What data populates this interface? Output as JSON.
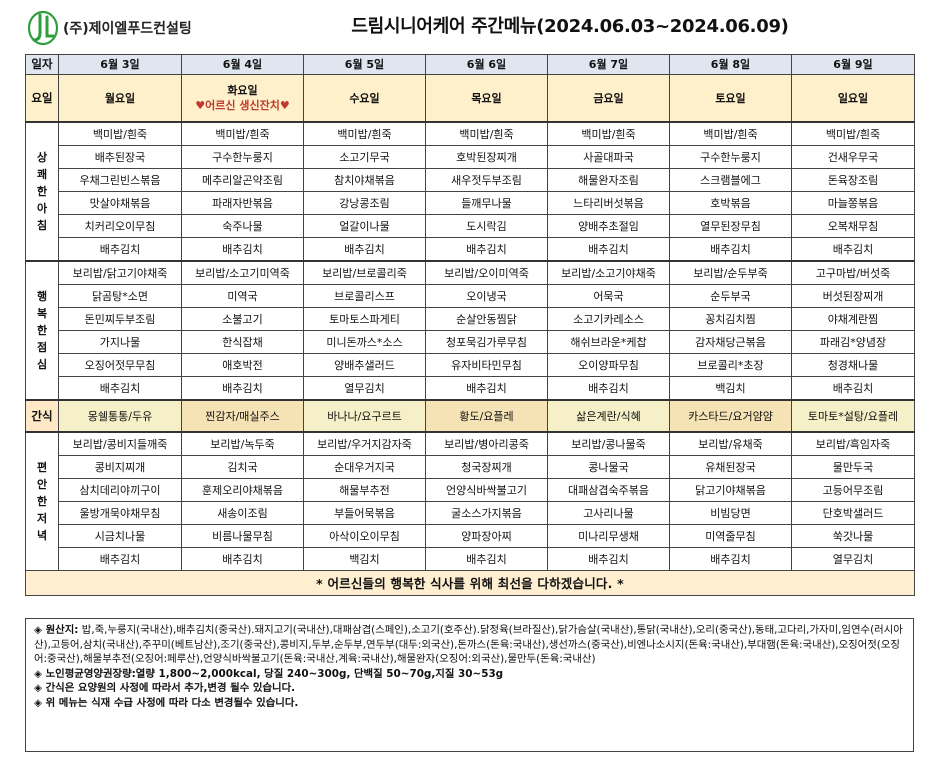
{
  "header": {
    "company": "(주)제이엘푸드컨설팅",
    "title": "드림시니어케어 주간메뉴(2024.06.03~2024.06.09)"
  },
  "labels": {
    "date": "일자",
    "day": "요일",
    "breakfast": "상쾌한아침",
    "lunch": "행복한점심",
    "snack": "간식",
    "dinner": "편안한저녁"
  },
  "dates": [
    "6월 3일",
    "6월 4일",
    "6월 5일",
    "6월 6일",
    "6월 7일",
    "6월 8일",
    "6월 9일"
  ],
  "days": [
    "월요일",
    "화요일",
    "수요일",
    "목요일",
    "금요일",
    "토요일",
    "일요일"
  ],
  "event": {
    "day_index": 1,
    "text": "♥어르신 생신잔치♥"
  },
  "breakfast": [
    [
      "백미밥/흰죽",
      "배추된장국",
      "우채그린빈스볶음",
      "맛살야채볶음",
      "치커리오이무침",
      "배추김치"
    ],
    [
      "백미밥/흰죽",
      "구수한누룽지",
      "메추리알곤약조림",
      "파래자반볶음",
      "숙주나물",
      "배추김치"
    ],
    [
      "백미밥/흰죽",
      "소고기무국",
      "참치야채볶음",
      "강낭콩조림",
      "얼갈이나물",
      "배추김치"
    ],
    [
      "백미밥/흰죽",
      "호박된장찌개",
      "새우젓두부조림",
      "들깨무나물",
      "도시락김",
      "배추김치"
    ],
    [
      "백미밥/흰죽",
      "사골대파국",
      "해물완자조림",
      "느타리버섯볶음",
      "양배추초절임",
      "배추김치"
    ],
    [
      "백미밥/흰죽",
      "구수한누룽지",
      "스크램블에그",
      "호박볶음",
      "열무된장무침",
      "배추김치"
    ],
    [
      "백미밥/흰죽",
      "건새우무국",
      "돈육장조림",
      "마늘쫑볶음",
      "오복채무침",
      "배추김치"
    ]
  ],
  "lunch": [
    [
      "보리밥/닭고기야채죽",
      "닭곰탕*소면",
      "돈민찌두부조림",
      "가지나물",
      "오징어젓무무침",
      "배추김치"
    ],
    [
      "보리밥/소고기미역죽",
      "미역국",
      "소불고기",
      "한식잡채",
      "애호박전",
      "배추김치"
    ],
    [
      "보리밥/브로콜리죽",
      "브로콜리스프",
      "토마토스파게티",
      "미니돈까스*소스",
      "양배추샐러드",
      "열무김치"
    ],
    [
      "보리밥/오이미역죽",
      "오이냉국",
      "순살안동찜닭",
      "청포묵김가루무침",
      "유자비타민무침",
      "배추김치"
    ],
    [
      "보리밥/소고기야채죽",
      "어묵국",
      "소고기카레소스",
      "해쉬브라운*케찹",
      "오이양파무침",
      "배추김치"
    ],
    [
      "보리밥/순두부죽",
      "순두부국",
      "꽁치김치찜",
      "감자채당근볶음",
      "브로콜리*초장",
      "백김치"
    ],
    [
      "고구마밥/버섯죽",
      "버섯된장찌개",
      "야채계란찜",
      "파래김*양념장",
      "청경채나물",
      "배추김치"
    ]
  ],
  "snack": [
    "몽쉘통통/두유",
    "찐감자/매실주스",
    "바나나/요구르트",
    "황도/요플레",
    "삶은계란/식혜",
    "카스타드/요거얌얌",
    "토마토*설탕/요플레"
  ],
  "dinner": [
    [
      "보리밥/콩비지들깨죽",
      "콩비지찌개",
      "삼치데리야끼구이",
      "울방개묵야채무침",
      "시금치나물",
      "배추김치"
    ],
    [
      "보리밥/녹두죽",
      "김치국",
      "훈제오리야채볶음",
      "새송이조림",
      "비름나물무침",
      "배추김치"
    ],
    [
      "보리밥/우거지감자죽",
      "순대우거지국",
      "해물부추전",
      "부들어묵볶음",
      "아삭이오이무침",
      "백김치"
    ],
    [
      "보리밥/병아리콩죽",
      "청국장찌개",
      "언양식바싹불고기",
      "굴소스가지볶음",
      "양파장아찌",
      "배추김치"
    ],
    [
      "보리밥/콩나물죽",
      "콩나물국",
      "대패삼겹숙주볶음",
      "고사리나물",
      "미나리무생채",
      "배추김치"
    ],
    [
      "보리밥/유채죽",
      "유채된장국",
      "닭고기야채볶음",
      "비빔당면",
      "미역줄무침",
      "배추김치"
    ],
    [
      "보리밥/흑임자죽",
      "물만두국",
      "고등어무조림",
      "단호박샐러드",
      "쑥갓나물",
      "열무김치"
    ]
  ],
  "notice": "* 어르신들의 행복한 식사를 위해 최선을 다하겠습니다. *",
  "notes": {
    "origin_label": "◈ 원산지:",
    "origin_text": " 밥,죽,누룽지(국내산),배추김치(중국산).돼지고기(국내산),대패삼겹(스페인),소고기(호주산).닭정육(브라질산),닭가슴살(국내산),통닭(국내산),오리(중국산),동태,고다리,가자미,임연수(러시아산),고등어,삼치(국내산),주꾸미(베트남산),조기(중국산),콩비지,두부,순두부,연두부(대두:외국산),돈까스(돈육:국내산),생선까스(중국산),비엔나소시지(돈육:국내산),부대햄(돈육:국내산),오징어젓(오징어:중국산),해물부추전(오징어:페루산),언양식바싹불고기(돈육:국내산,계육:국내산),해물완자(오징어:외국산),물만두(돈육:국내산)",
    "nutrition": "◈ 노인평균영양권장량:열량 1,800~2,000kcal, 당질 240~300g, 단백질 50~70g,지질 30~53g",
    "snack_note": "◈ 간식은 요양원의 사정에 따라서 추가,변경 될수 있습니다.",
    "menu_note": "◈ 위 메뉴는 식재 수급 사정에 따라 다소 변경될수 있습니다."
  },
  "colors": {
    "header_bg": "#dfe6f0",
    "day_bg": "#fff0cc",
    "event_text": "#c0392b",
    "logo_green": "#2e9e3e",
    "notice_bg": "#ffeed0"
  }
}
